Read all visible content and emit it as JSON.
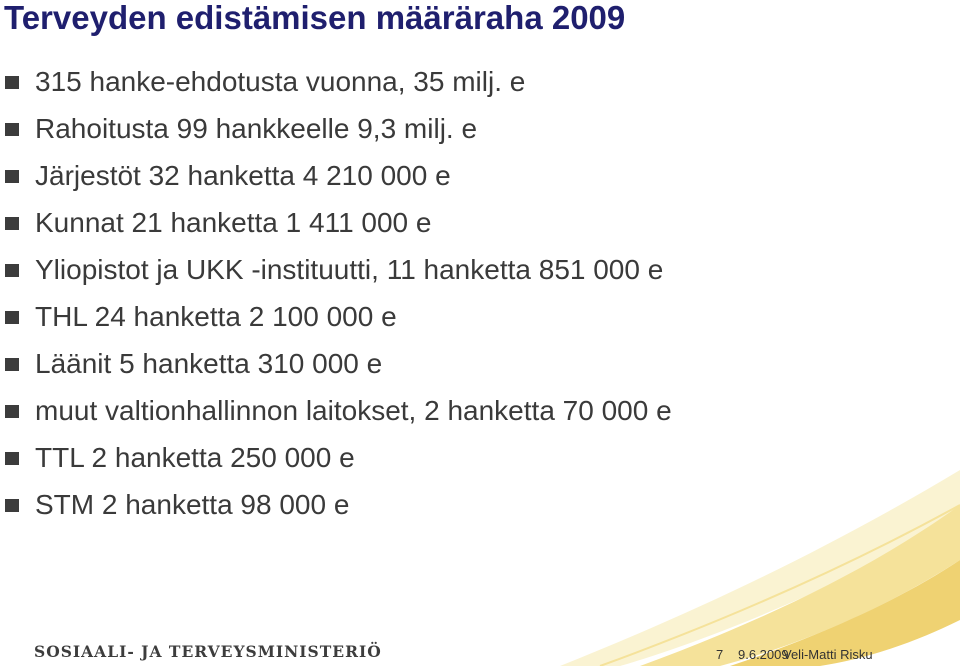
{
  "colors": {
    "title": "#1f1f6e",
    "text": "#3a3a3a",
    "bullet": "#3c3c3c",
    "decoration_light": "#faf3d2",
    "decoration_mid": "#f5e29a",
    "decoration_dark": "#efd272",
    "logo": "#3d3d3d",
    "footer": "#333333"
  },
  "slide": {
    "title": "Terveyden edistämisen määräraha 2009",
    "bullets": [
      {
        "text": "315 hanke-ehdotusta vuonna, 35 milj. e"
      },
      {
        "text": "Rahoitusta 99 hankkeelle 9,3 milj. e"
      },
      {
        "text": "Järjestöt 32 hanketta 4 210 000 e"
      },
      {
        "text": "Kunnat 21 hanketta 1 411 000 e"
      },
      {
        "text": "Yliopistot ja UKK -instituutti,  11 hanketta 851 000 e"
      },
      {
        "text": "THL 24 hanketta 2 100 000 e"
      },
      {
        "text": "Läänit 5 hanketta 310 000 e"
      },
      {
        "text": "muut valtionhallinnon laitokset, 2 hanketta 70 000 e"
      },
      {
        "text": "TTL 2 hanketta 250 000 e"
      },
      {
        "text": "STM 2 hanketta 98 000 e"
      }
    ],
    "bullet_icon": "square-bullet-icon"
  },
  "footer": {
    "logo_text": "SOSIAALI- JA TERVEYSMINISTERIÖ",
    "page_number": "7",
    "date": "9.6.2009",
    "author": "Veli-Matti Risku"
  }
}
